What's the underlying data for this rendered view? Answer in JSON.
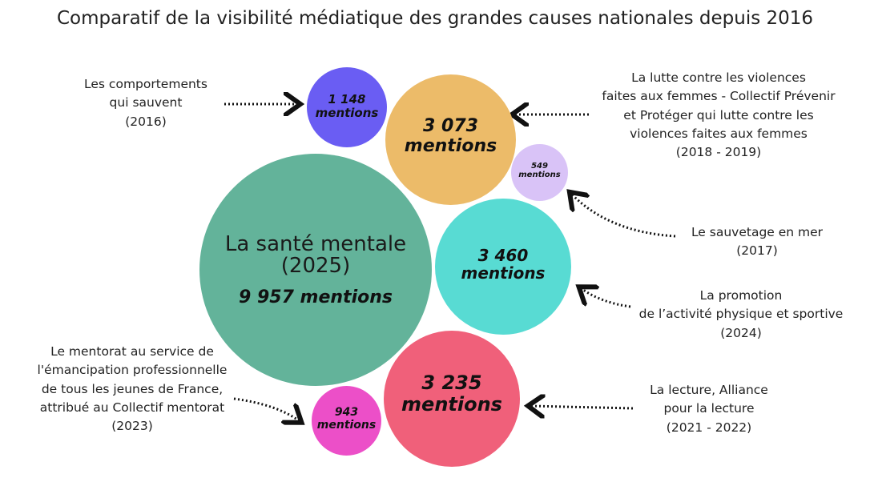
{
  "title": "Comparatif de la visibilité médiatique des grandes causes nationales depuis 2016",
  "colors": {
    "sante": "#63b39a",
    "comportements": "#6a5df3",
    "lutte": "#ecbb69",
    "sauvetage": "#d9c3f7",
    "promotion": "#58dbd3",
    "lecture": "#f0607a",
    "mentorat": "#ec4fc8"
  },
  "bubbles": {
    "sante": {
      "name_line1": "La santé mentale",
      "name_line2": "(2025)",
      "mentions": "9 957 mentions"
    },
    "comportements": {
      "value": "1 148",
      "unit": "mentions"
    },
    "lutte": {
      "value": "3 073",
      "unit": "mentions"
    },
    "sauvetage": {
      "value": "549",
      "unit": "mentions"
    },
    "promotion": {
      "value": "3 460",
      "unit": "mentions"
    },
    "lecture": {
      "value": "3 235",
      "unit": "mentions"
    },
    "mentorat": {
      "value": "943",
      "unit": "mentions"
    }
  },
  "labels": {
    "comportements": [
      "Les comportements",
      "qui sauvent",
      "(2016)"
    ],
    "lutte": [
      "La lutte contre  les violences",
      "faites aux femmes - Collectif Prévenir",
      "et Protéger qui lutte contre les",
      "violences faites aux femmes",
      "(2018 - 2019)"
    ],
    "sauvetage": [
      "Le sauvetage en mer",
      "(2017)"
    ],
    "promotion": [
      "La promotion",
      "de l’activité physique et sportive",
      "(2024)"
    ],
    "lecture": [
      "La lecture,  Alliance",
      "pour la lecture",
      "(2021 - 2022)"
    ],
    "mentorat": [
      "Le mentorat au service de",
      "l'émancipation professionnelle",
      "de tous les jeunes de France,",
      "attribué au Collectif mentorat",
      "(2023)"
    ]
  }
}
